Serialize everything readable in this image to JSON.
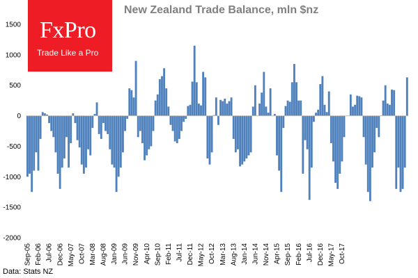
{
  "chart_data": {
    "type": "bar",
    "title": "New Zealand Trade Balance, mln $nz",
    "xlabel": "",
    "ylabel": "",
    "ylim": [
      -2000,
      1500
    ],
    "y_ticks": [
      1500,
      1000,
      500,
      0,
      -500,
      -1000,
      -1500,
      -2000
    ],
    "x_tick_labels": [
      "Sep-05",
      "Feb-06",
      "Jul-06",
      "Dec-06",
      "May-07",
      "Oct-07",
      "Mar-08",
      "Aug-08",
      "Jan-09",
      "Jun-09",
      "Nov-09",
      "Apr-10",
      "Sep-10",
      "Feb-11",
      "Jul-11",
      "Dec-11",
      "May-12",
      "Oct-12",
      "Mar-13",
      "Aug-13",
      "Jan-14",
      "Jun-14",
      "Nov-14",
      "Apr-15",
      "Sep-15",
      "Feb-16",
      "Jul-16",
      "Dec-16",
      "May-17",
      "Oct-17"
    ],
    "start_month": "Sep-05",
    "bar_color": "#4f81bd",
    "grid": false,
    "values": [
      -1000,
      -950,
      -1250,
      -900,
      -600,
      -900,
      -380,
      60,
      40,
      20,
      -120,
      -250,
      -350,
      -600,
      -950,
      -1200,
      -850,
      -700,
      -350,
      -850,
      -450,
      40,
      -120,
      -400,
      -520,
      -800,
      -950,
      -850,
      -550,
      -650,
      -200,
      30,
      220,
      -300,
      -380,
      -120,
      -250,
      -300,
      -550,
      -800,
      -850,
      -1250,
      -1000,
      -850,
      -600,
      -250,
      -50,
      450,
      420,
      300,
      900,
      -350,
      -250,
      -450,
      -730,
      -650,
      -550,
      -500,
      -250,
      250,
      350,
      600,
      650,
      780,
      450,
      150,
      -150,
      -250,
      -420,
      -450,
      -380,
      -250,
      -100,
      -50,
      160,
      180,
      560,
      1150,
      550,
      200,
      170,
      720,
      630,
      -700,
      -800,
      -600,
      10,
      300,
      -150,
      260,
      240,
      280,
      200,
      240,
      300,
      -380,
      -600,
      -550,
      -830,
      -800,
      -750,
      -700,
      -650,
      -600,
      150,
      500,
      0,
      200,
      380,
      720,
      150,
      50,
      450,
      0,
      30,
      -650,
      -900,
      -1250,
      -200,
      160,
      250,
      230,
      550,
      850,
      550,
      250,
      250,
      -950,
      -400,
      -550,
      -1380,
      -850,
      -100,
      50,
      100,
      520,
      650,
      180,
      60,
      400,
      -450,
      -750,
      -1100,
      -1200,
      -950,
      -750,
      -350,
      0,
      0,
      350,
      150,
      180,
      330,
      320,
      300,
      -350,
      -800,
      -1250,
      -1400,
      -850,
      -600,
      -200,
      -350,
      0,
      250,
      500,
      200,
      180,
      430,
      420,
      -1200,
      -850,
      -1250,
      -1200,
      -850,
      630
    ]
  }
}
